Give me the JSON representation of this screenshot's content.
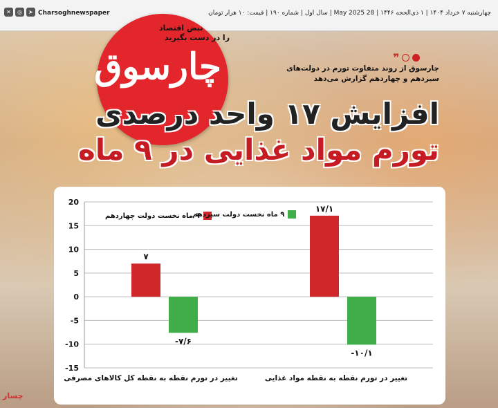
{
  "header": {
    "date_line": "چهارشنبه ۷ خرداد ۱۴۰۴ | ۱ ذی‌الحجه ۱۴۴۶ | 28 May 2025 | سال اول | شماره ۱۹۰ | قیمت: ۱۰ هزار تومان",
    "handle": "Charsoghnewspaper",
    "tagline_1": "نبض اقتصاد",
    "tagline_2": "را در دست بگیرید",
    "logo": "چارسوق"
  },
  "note": {
    "text": "چارسوق از روند متفاوت تورم در دولت‌های سیزدهم و چهاردهم گزارش می‌دهد"
  },
  "headline": {
    "line1": "افزایش ۱۷ واحد درصدی",
    "line2": "تورم مواد غذایی در ۹ ماه"
  },
  "watermark": "چسار",
  "colors": {
    "red": "#d0272b",
    "green": "#3fae49",
    "brand": "#e3262b"
  },
  "chart_data": {
    "type": "bar",
    "categories": [
      "تغییر در تورم نقطه به نقطه کل کالاهای مصرفی",
      "تغییر در تورم نقطه به نقطه مواد غذایی"
    ],
    "series": [
      {
        "name": "۹ ماه نخست دولت چهاردهم",
        "color": "#d0272b",
        "values": [
          7,
          17.1
        ],
        "labels": [
          "۷",
          "۱۷/۱"
        ]
      },
      {
        "name": "۹ ماه نخست دولت سیزدهم",
        "color": "#3fae49",
        "values": [
          -7.6,
          -10.1
        ],
        "labels": [
          "-۷/۶",
          "-۱۰/۱"
        ]
      }
    ],
    "ylim": [
      -15,
      20
    ],
    "yticks": [
      20,
      15,
      10,
      5,
      0,
      -5,
      -10,
      -15
    ],
    "ytick_labels": [
      "20",
      "15",
      "10",
      "5",
      "0",
      "-5",
      "-10",
      "-15"
    ],
    "grid": true,
    "legend": "top-left"
  }
}
